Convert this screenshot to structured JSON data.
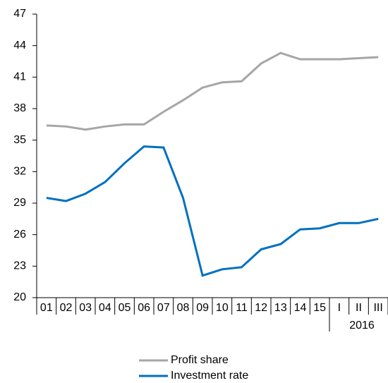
{
  "chart_data": {
    "type": "line",
    "categories": [
      "01",
      "02",
      "03",
      "04",
      "05",
      "06",
      "07",
      "08",
      "09",
      "10",
      "11",
      "12",
      "13",
      "14",
      "15",
      "I",
      "II",
      "III"
    ],
    "group_label": "2016",
    "series": [
      {
        "name": "Profit share",
        "color": "#a6a6a6",
        "values": [
          36.4,
          36.3,
          36.0,
          36.3,
          36.5,
          36.5,
          37.7,
          38.8,
          40.0,
          40.5,
          40.6,
          42.3,
          43.3,
          42.7,
          42.7,
          42.7,
          42.8,
          42.9
        ]
      },
      {
        "name": "Investment rate",
        "color": "#0070c0",
        "values": [
          29.5,
          29.2,
          29.9,
          31.0,
          32.8,
          34.4,
          34.3,
          29.5,
          22.1,
          22.7,
          22.9,
          24.6,
          25.1,
          26.5,
          26.6,
          27.1,
          27.1,
          27.5
        ]
      }
    ],
    "ylim": [
      20,
      47
    ],
    "yticks": [
      20,
      23,
      26,
      29,
      32,
      35,
      38,
      41,
      44,
      47
    ],
    "grid": false,
    "legend": "bottom"
  }
}
